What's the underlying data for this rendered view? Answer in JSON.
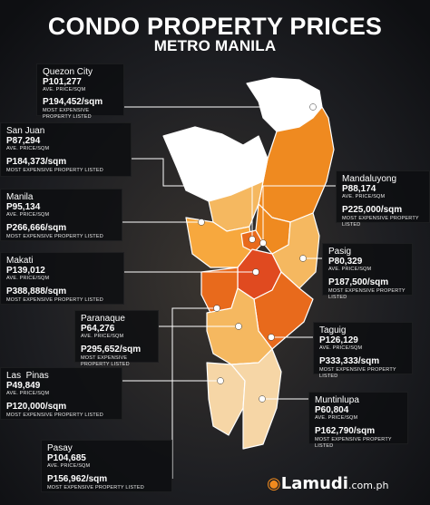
{
  "title": "CONDO PROPERTY PRICES",
  "subtitle": "METRO MANILA",
  "avg_label": "AVE. PRICE/SQM",
  "max_label": "MOST EXPENSIVE PROPERTY LISTED",
  "colors": {
    "white": "#ffffff",
    "light_orange": "#f5b860",
    "orange": "#ef8a20",
    "dark_orange": "#e86a1c",
    "red_orange": "#e04a20",
    "tan": "#f6d6a6"
  },
  "cities": [
    {
      "name": "Quezon City",
      "avg": "P101,277",
      "max": "P194,452/sqm"
    },
    {
      "name": "San Juan",
      "avg": "P87,294",
      "max": "P184,373/sqm"
    },
    {
      "name": "Manila",
      "avg": "P95,134",
      "max": "P266,666/sqm"
    },
    {
      "name": "Makati",
      "avg": "P139,012",
      "max": "P388,888/sqm"
    },
    {
      "name": "Paranaque",
      "avg": "P64,276",
      "max": "P295,652/sqm"
    },
    {
      "name": "Las  Pinas",
      "avg": "P49,849",
      "max": "P120,000/sqm"
    },
    {
      "name": "Pasay",
      "avg": "P104,685",
      "max": "P156,962/sqm"
    },
    {
      "name": "Mandaluyong",
      "avg": "P88,174",
      "max": "P225,000/sqm"
    },
    {
      "name": "Pasig",
      "avg": "P80,329",
      "max": "P187,500/sqm"
    },
    {
      "name": "Taguig",
      "avg": "P126,129",
      "max": "P333,333/sqm"
    },
    {
      "name": "Muntinlupa",
      "avg": "P60,804",
      "max": "P162,790/sqm"
    }
  ],
  "logo": {
    "brand": "Lamudi",
    "domain": ".com.ph"
  }
}
